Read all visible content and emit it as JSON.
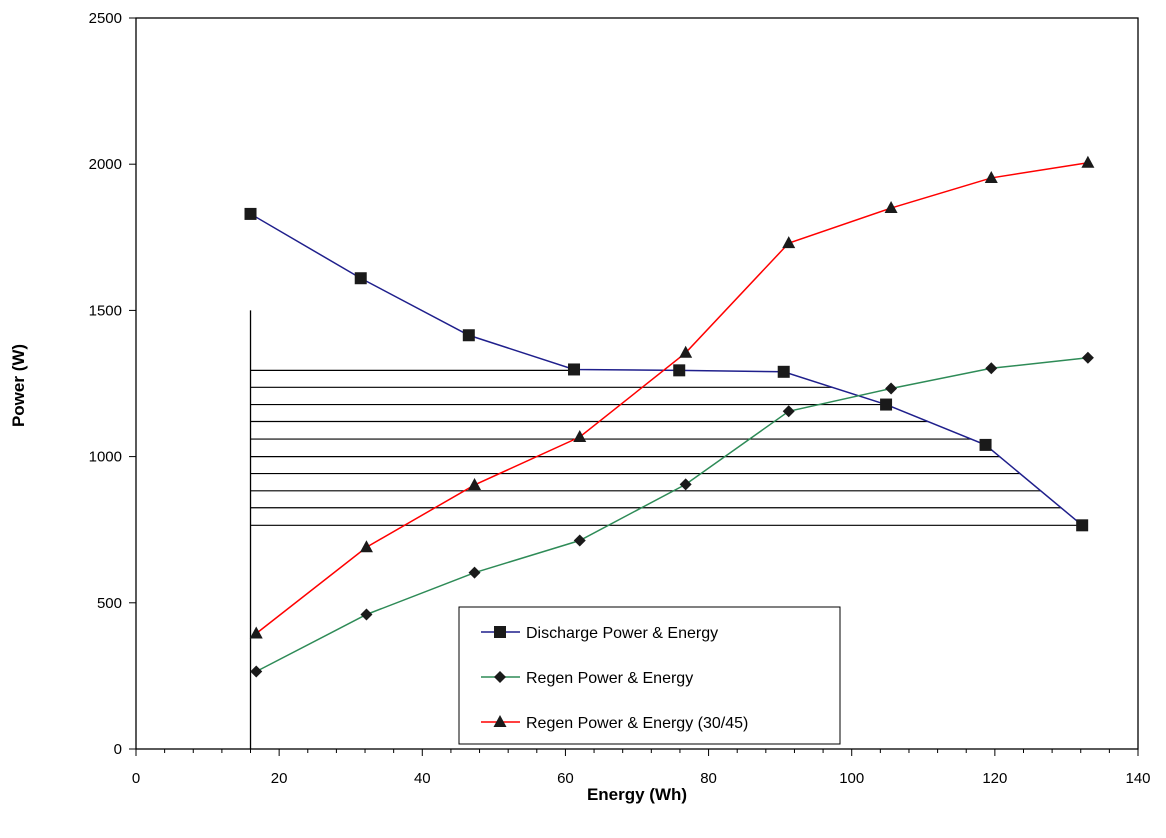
{
  "chart_data": {
    "type": "line",
    "xlabel": "Energy (Wh)",
    "ylabel": "Power (W)",
    "xlim": [
      0,
      140
    ],
    "ylim": [
      0,
      2500
    ],
    "xticks": [
      0,
      20,
      40,
      60,
      80,
      100,
      120,
      140
    ],
    "yticks": [
      0,
      500,
      1000,
      1500,
      2000,
      2500
    ],
    "x_minor_step": 4,
    "grid": false,
    "legend_position": "bottom-center",
    "series": [
      {
        "name": "Discharge Power & Energy",
        "color": "#1f1f8c",
        "marker": "square",
        "x": [
          16.0,
          31.4,
          46.5,
          61.2,
          75.9,
          90.5,
          104.8,
          118.7,
          132.2
        ],
        "y": [
          1830,
          1610,
          1415,
          1298,
          1295,
          1290,
          1178,
          1040,
          765
        ]
      },
      {
        "name": "Regen Power & Energy",
        "color": "#2e8b57",
        "marker": "diamond",
        "x": [
          16.8,
          32.2,
          47.3,
          62.0,
          76.8,
          91.2,
          105.5,
          119.5,
          133.0
        ],
        "y": [
          265,
          460,
          603,
          713,
          905,
          1155,
          1233,
          1302,
          1338
        ]
      },
      {
        "name": "Regen Power & Energy (30/45)",
        "color": "#ff0000",
        "marker": "triangle",
        "x": [
          16.8,
          32.2,
          47.3,
          62.0,
          76.8,
          91.2,
          105.5,
          119.5,
          133.0
        ],
        "y": [
          395,
          690,
          903,
          1067,
          1355,
          1730,
          1850,
          1953,
          2005
        ]
      }
    ],
    "annotation": {
      "vertical_line": {
        "x": 16.0,
        "y_from": 0,
        "y_to": 1500
      },
      "hatch_lines_y": [
        1295,
        1237,
        1178,
        1120,
        1060,
        1000,
        942,
        883,
        825,
        765
      ]
    }
  }
}
